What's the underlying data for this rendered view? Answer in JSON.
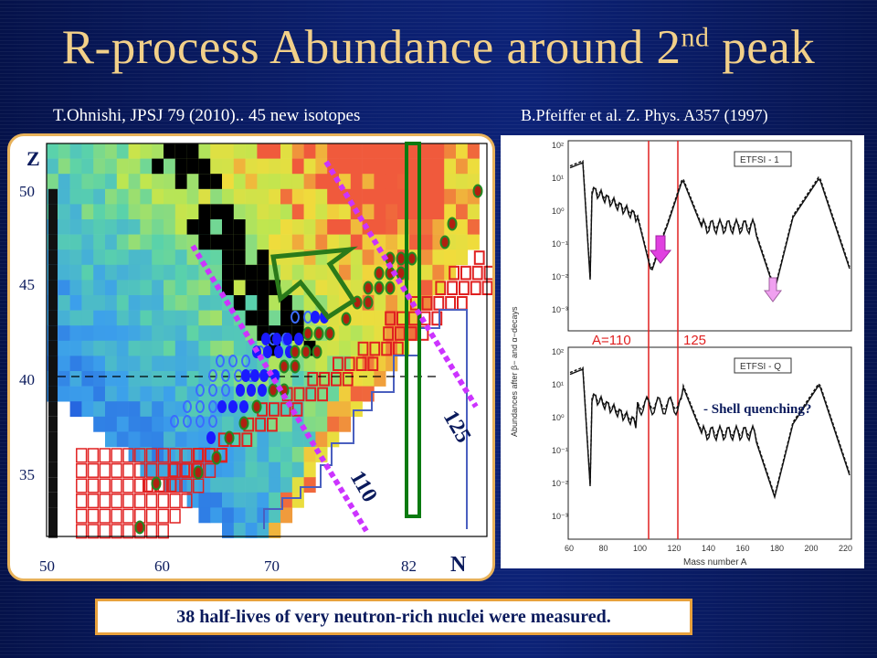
{
  "slide": {
    "title_main": "R-process Abundance around 2",
    "title_sup": "nd",
    "title_tail": " peak",
    "citation_left": "T.Ohnishi, JPSJ 79 (2010).. 45 new isotopes",
    "citation_right": "B.Pfeiffer et al.  Z. Phys. A357 (1997)",
    "summary": "38 half-lives of very neutron-rich nuclei were measured."
  },
  "nuclide_chart": {
    "z_label": "Z",
    "n_label": "N",
    "y_ticks": [
      "50",
      "45",
      "40",
      "35"
    ],
    "x_ticks": [
      "50",
      "60",
      "70",
      "82"
    ],
    "diag_label_low": "110",
    "diag_label_high": "125",
    "colors": {
      "stable_black": "#000000",
      "new_isotope_ring": "#3b6cff",
      "halflife_dot": "#1a1aff",
      "rprocess_dot": "#228822",
      "unknown_red": "#e02020",
      "n82_box": "#0a7a10",
      "isobar_line": "#cc33ff",
      "arrow": "#2a7a1a"
    }
  },
  "abundance_plot": {
    "panel_top_label": "ETFSI - 1",
    "panel_bottom_label": "ETFSI - Q",
    "a_label_1": "A=110",
    "a_label_2": "125",
    "y_axis_label": "Abundances after β− and α−decays",
    "x_axis_label": "Mass number A",
    "x_ticks": [
      "60",
      "80",
      "100",
      "120",
      "140",
      "160",
      "180",
      "200",
      "220"
    ],
    "y_ticks_top": [
      "10²",
      "10¹",
      "10⁰",
      "10⁻¹",
      "10⁻²",
      "10⁻³"
    ],
    "y_ticks_bottom": [
      "10²",
      "10¹",
      "10⁰",
      "10⁻¹",
      "10⁻²",
      "10⁻³"
    ],
    "annotation": "- Shell quenching?"
  }
}
